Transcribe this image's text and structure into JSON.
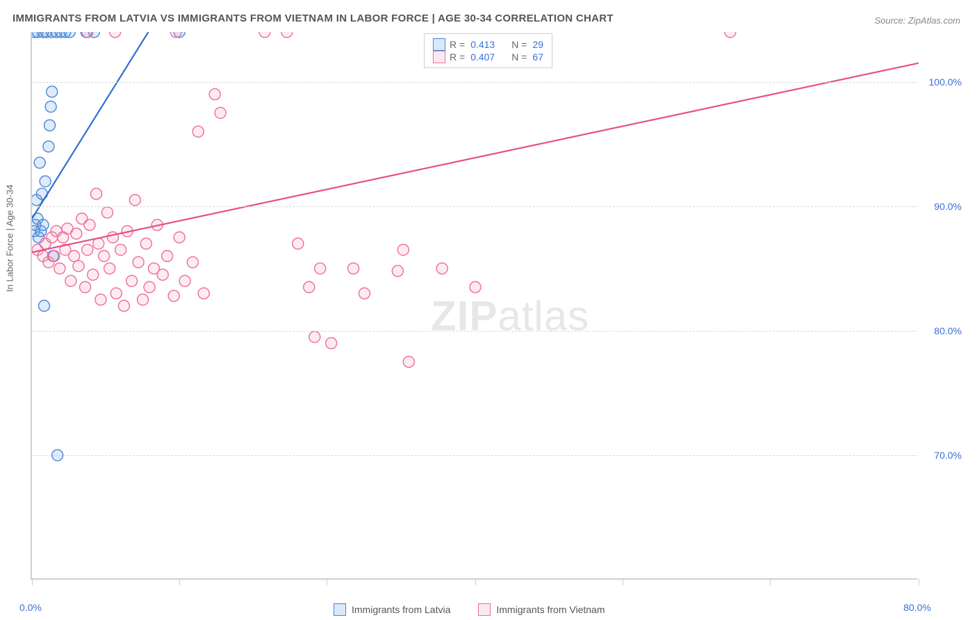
{
  "title": "IMMIGRANTS FROM LATVIA VS IMMIGRANTS FROM VIETNAM IN LABOR FORCE | AGE 30-34 CORRELATION CHART",
  "source": "Source: ZipAtlas.com",
  "ylabel": "In Labor Force | Age 30-34",
  "watermark_bold": "ZIP",
  "watermark_light": "atlas",
  "chart": {
    "type": "scatter",
    "background_color": "#ffffff",
    "grid_color": "#d8d8d8",
    "axis_color": "#cfcfcf",
    "tick_label_color": "#3b6fd6",
    "label_color": "#666666",
    "title_color": "#555555",
    "title_fontsize": 15,
    "label_fontsize": 13,
    "tick_fontsize": 14,
    "xlim": [
      0,
      80
    ],
    "ylim": [
      60,
      104
    ],
    "xticks": [
      0,
      13.3,
      26.6,
      40,
      53.3,
      66.6,
      80
    ],
    "xtick_labels": [
      "0.0%",
      "",
      "",
      "",
      "",
      "",
      "80.0%"
    ],
    "yticks": [
      70,
      80,
      90,
      100
    ],
    "ytick_labels": [
      "70.0%",
      "80.0%",
      "90.0%",
      "100.0%"
    ],
    "marker_radius": 8,
    "marker_fill_opacity": 0.22,
    "marker_stroke_width": 1.4,
    "line_width": 2.2
  },
  "series": [
    {
      "name": "Immigrants from Latvia",
      "color": "#6aa3e8",
      "stroke": "#4a86d6",
      "line_color": "#2f6fd0",
      "R": "0.413",
      "N": "29",
      "trend": {
        "x1": 0,
        "y1": 89.0,
        "x2": 10.5,
        "y2": 104.0
      },
      "points": [
        [
          0.2,
          88.0
        ],
        [
          0.3,
          88.5
        ],
        [
          0.5,
          89.0
        ],
        [
          0.6,
          87.5
        ],
        [
          0.8,
          88.0
        ],
        [
          0.4,
          90.5
        ],
        [
          0.9,
          91.0
        ],
        [
          1.2,
          92.0
        ],
        [
          0.7,
          93.5
        ],
        [
          1.0,
          88.5
        ],
        [
          0.2,
          104.0
        ],
        [
          0.5,
          104.0
        ],
        [
          1.0,
          104.0
        ],
        [
          1.3,
          104.0
        ],
        [
          1.8,
          104.0
        ],
        [
          2.2,
          104.0
        ],
        [
          2.6,
          104.0
        ],
        [
          3.0,
          104.0
        ],
        [
          3.4,
          104.0
        ],
        [
          4.9,
          104.0
        ],
        [
          5.6,
          104.0
        ],
        [
          13.3,
          104.0
        ],
        [
          1.5,
          94.8
        ],
        [
          1.6,
          96.5
        ],
        [
          1.7,
          98.0
        ],
        [
          1.8,
          99.2
        ],
        [
          1.9,
          86.0
        ],
        [
          1.1,
          82.0
        ],
        [
          2.3,
          70.0
        ]
      ]
    },
    {
      "name": "Immigrants from Vietnam",
      "color": "#f4a6c0",
      "stroke": "#ec6d98",
      "line_color": "#e84e88",
      "R": "0.407",
      "N": "67",
      "trend": {
        "x1": 0,
        "y1": 86.3,
        "x2": 80,
        "y2": 101.5
      },
      "points": [
        [
          0.5,
          86.5
        ],
        [
          1.0,
          86.0
        ],
        [
          1.2,
          87.0
        ],
        [
          1.5,
          85.5
        ],
        [
          1.8,
          87.5
        ],
        [
          2.0,
          86.0
        ],
        [
          2.2,
          88.0
        ],
        [
          2.5,
          85.0
        ],
        [
          2.8,
          87.5
        ],
        [
          3.0,
          86.5
        ],
        [
          3.2,
          88.2
        ],
        [
          3.5,
          84.0
        ],
        [
          3.8,
          86.0
        ],
        [
          4.0,
          87.8
        ],
        [
          4.2,
          85.2
        ],
        [
          4.5,
          89.0
        ],
        [
          4.8,
          83.5
        ],
        [
          5.0,
          86.5
        ],
        [
          5.2,
          88.5
        ],
        [
          5.5,
          84.5
        ],
        [
          5.8,
          91.0
        ],
        [
          6.0,
          87.0
        ],
        [
          6.2,
          82.5
        ],
        [
          6.5,
          86.0
        ],
        [
          6.8,
          89.5
        ],
        [
          7.0,
          85.0
        ],
        [
          7.3,
          87.5
        ],
        [
          7.6,
          83.0
        ],
        [
          8.0,
          86.5
        ],
        [
          8.3,
          82.0
        ],
        [
          8.6,
          88.0
        ],
        [
          9.0,
          84.0
        ],
        [
          9.3,
          90.5
        ],
        [
          9.6,
          85.5
        ],
        [
          10.0,
          82.5
        ],
        [
          10.3,
          87.0
        ],
        [
          10.6,
          83.5
        ],
        [
          11.0,
          85.0
        ],
        [
          11.3,
          88.5
        ],
        [
          11.8,
          84.5
        ],
        [
          12.2,
          86.0
        ],
        [
          12.8,
          82.8
        ],
        [
          13.3,
          87.5
        ],
        [
          13.8,
          84.0
        ],
        [
          14.5,
          85.5
        ],
        [
          15.0,
          96.0
        ],
        [
          15.5,
          83.0
        ],
        [
          16.5,
          99.0
        ],
        [
          5.0,
          104.0
        ],
        [
          7.5,
          104.0
        ],
        [
          13.0,
          104.0
        ],
        [
          17.0,
          97.5
        ],
        [
          21.0,
          104.0
        ],
        [
          23.0,
          104.0
        ],
        [
          24.0,
          87.0
        ],
        [
          25.0,
          83.5
        ],
        [
          25.5,
          79.5
        ],
        [
          27.0,
          79.0
        ],
        [
          26.0,
          85.0
        ],
        [
          29.0,
          85.0
        ],
        [
          30.0,
          83.0
        ],
        [
          33.0,
          84.8
        ],
        [
          33.5,
          86.5
        ],
        [
          34.0,
          77.5
        ],
        [
          37.0,
          85.0
        ],
        [
          40.0,
          83.5
        ],
        [
          63.0,
          104.0
        ]
      ]
    }
  ],
  "legend_top": {
    "r_label": "R =",
    "n_label": "N ="
  },
  "legend_bottom": [
    {
      "label": "Immigrants from Latvia",
      "series": 0
    },
    {
      "label": "Immigrants from Vietnam",
      "series": 1
    }
  ]
}
